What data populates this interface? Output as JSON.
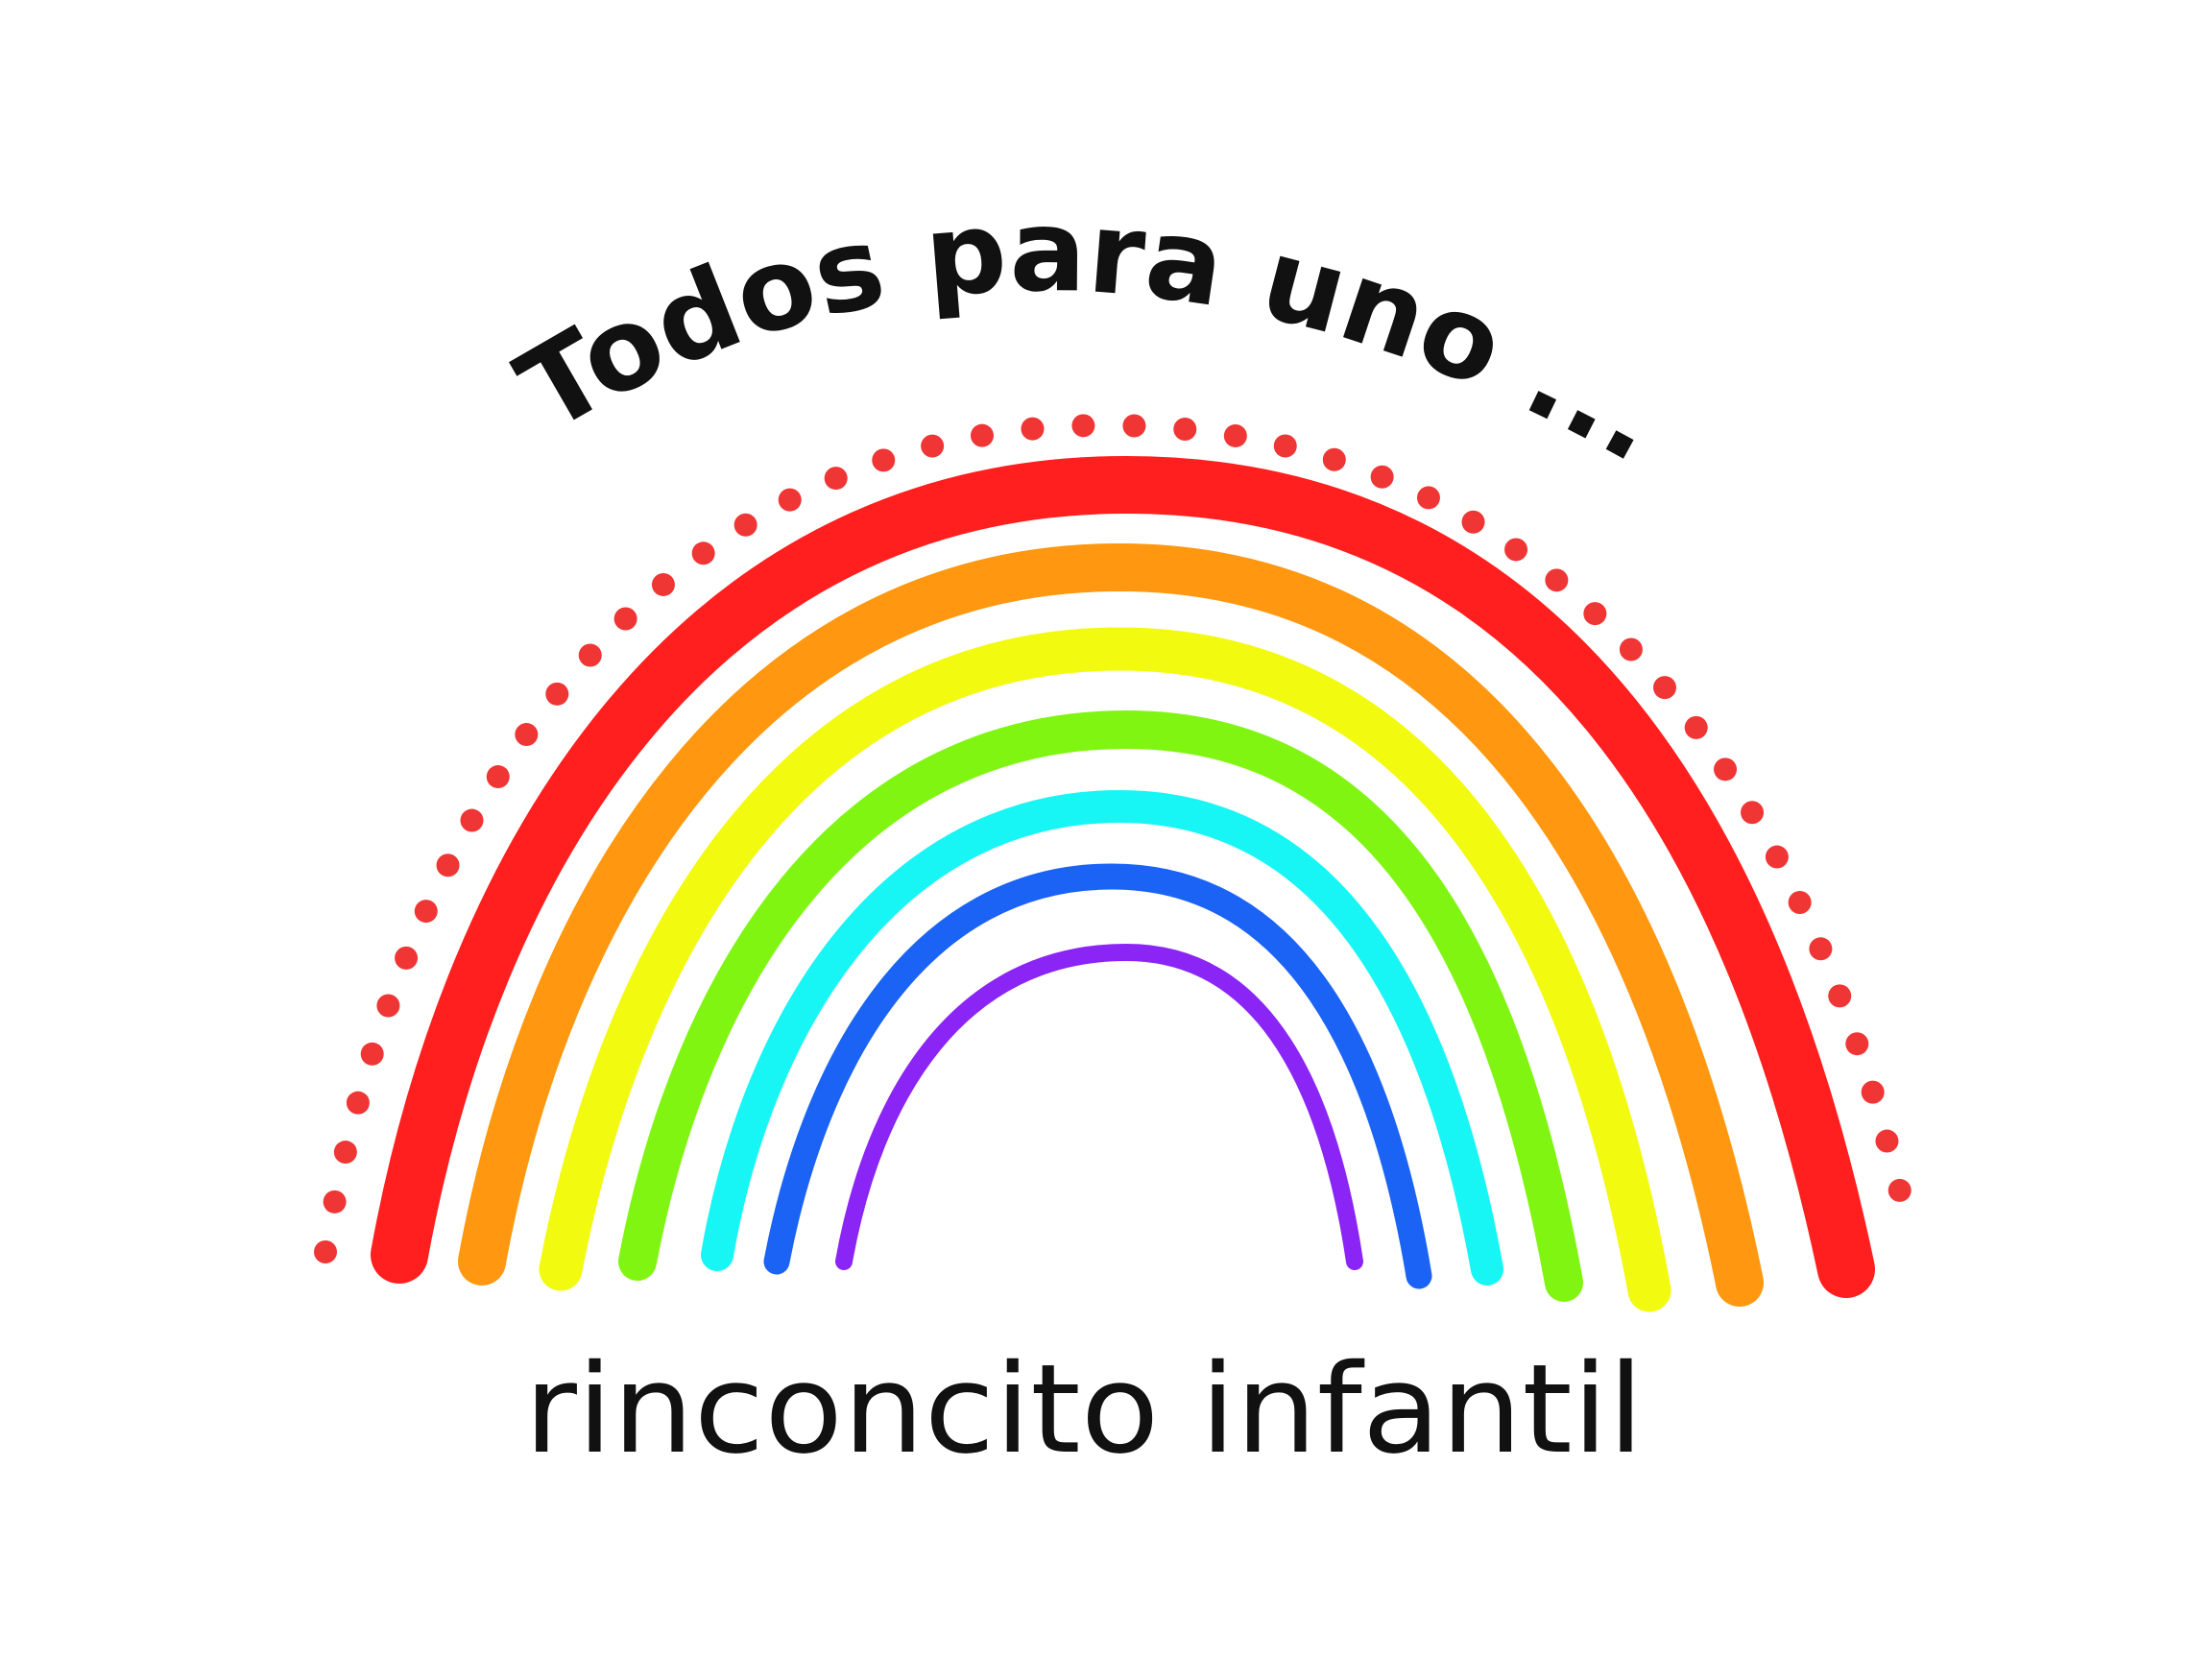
{
  "header": {
    "title": "Todos para uno ..."
  },
  "footer": {
    "subtitle": "rinconcito infantil"
  }
}
